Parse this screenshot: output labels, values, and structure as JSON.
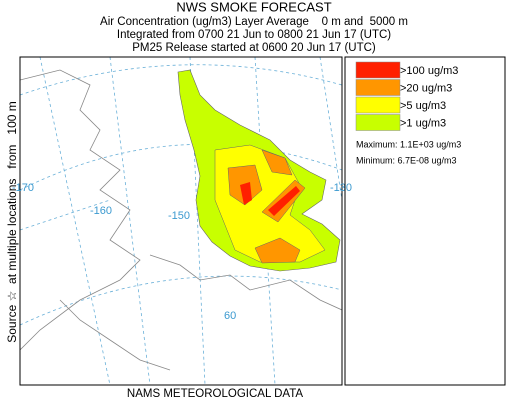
{
  "header": {
    "title": "NWS SMOKE FORECAST",
    "lines": [
      "Air Concentration (ug/m3) Layer Average    0 m and  5000 m",
      "Integrated from 0700 21 Jun to 0800 21 Jun 17 (UTC)",
      "PM25 Release started at 0600 20 Jun 17 (UTC)"
    ]
  },
  "map": {
    "source_label": "Source ☆  at multiple locations   from   100 m",
    "data_label": "NAMS METEOROLOGICAL DATA",
    "grid_labels": [
      "-170",
      "-160",
      "-150",
      "-130",
      "60"
    ]
  },
  "legend": {
    "entries": [
      {
        "label": ">100 ug/m3",
        "color": "#ff2000"
      },
      {
        "label": ">20 ug/m3",
        "color": "#ff9600"
      },
      {
        "label": ">5 ug/m3",
        "color": "#ffff00"
      },
      {
        "label": ">1 ug/m3",
        "color": "#c8ff00"
      }
    ],
    "maximum": "Maximum: 1.1E+03 ug/m3",
    "minimum": "Minimum: 6.7E-08 ug/m3"
  }
}
